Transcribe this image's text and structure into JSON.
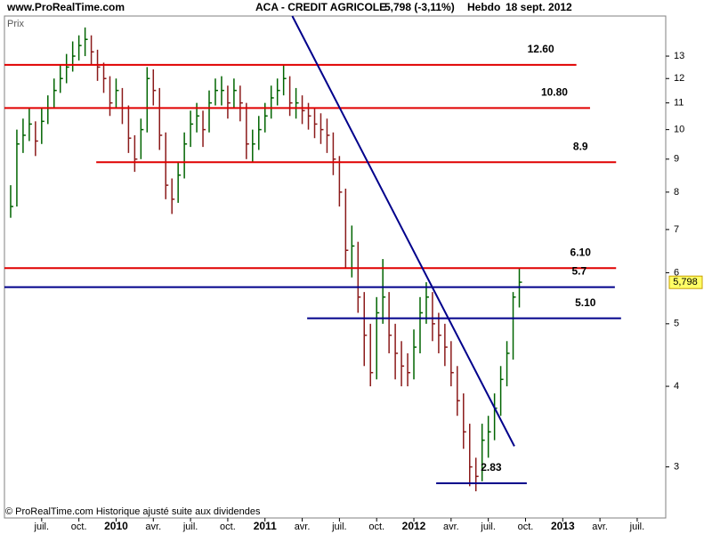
{
  "chart_data": {
    "type": "ohlc",
    "source": "www.ProRealTime.com",
    "title": "ACA - CREDIT AGRICOLE",
    "quote": "5,798 (-3,11%)",
    "period": "Hebdo",
    "date": "18 sept. 2012",
    "ylabel": "Prix",
    "footer": "© ProRealTime.com Historique ajusté suite aux dividendes",
    "log_scale": true,
    "xlim": [
      -3,
      50.3
    ],
    "ylim": [
      2.5,
      15
    ],
    "yticks": [
      3,
      4,
      5,
      6,
      7,
      8,
      9,
      10,
      11,
      12,
      13
    ],
    "xticks": [
      {
        "value": 0,
        "label": "juil."
      },
      {
        "value": 3,
        "label": "oct."
      },
      {
        "value": 6,
        "label": "2010"
      },
      {
        "value": 9,
        "label": "avr."
      },
      {
        "value": 12,
        "label": "juil."
      },
      {
        "value": 15,
        "label": "oct."
      },
      {
        "value": 18,
        "label": "2011"
      },
      {
        "value": 21,
        "label": "avr."
      },
      {
        "value": 24,
        "label": "juil."
      },
      {
        "value": 27,
        "label": "oct."
      },
      {
        "value": 30,
        "label": "2012"
      },
      {
        "value": 33,
        "label": "avr."
      },
      {
        "value": 36,
        "label": "juil."
      },
      {
        "value": 39,
        "label": "oct."
      },
      {
        "value": 42,
        "label": "2013"
      },
      {
        "value": 45,
        "label": "avr."
      },
      {
        "value": 48,
        "label": "juil."
      }
    ],
    "colors": {
      "up": "#006400",
      "down": "#8b1a1a"
    },
    "x": [
      -2.5,
      -2,
      -1.5,
      -1,
      -0.5,
      0,
      0.5,
      1,
      1.5,
      2,
      2.5,
      3,
      3.5,
      4,
      4.5,
      5,
      5.5,
      6,
      6.5,
      7,
      7.5,
      8,
      8.5,
      9,
      9.5,
      10,
      10.5,
      11,
      11.5,
      12,
      12.5,
      13,
      13.5,
      14,
      14.5,
      15,
      15.5,
      16,
      16.5,
      17,
      17.5,
      18,
      18.5,
      19,
      19.5,
      20,
      20.5,
      21,
      21.5,
      22,
      22.5,
      23,
      23.5,
      24,
      24.5,
      25,
      25.5,
      26,
      26.5,
      27,
      27.5,
      28,
      28.5,
      29,
      29.5,
      30,
      30.5,
      31,
      31.5,
      32,
      32.5,
      33,
      33.5,
      34,
      34.5,
      35,
      35.5,
      36,
      36.5,
      37,
      37.5,
      38,
      38.5
    ],
    "high": [
      8.2,
      10.0,
      10.4,
      10.8,
      10.3,
      10.8,
      11.3,
      12.0,
      12.6,
      13.1,
      13.7,
      14.0,
      14.4,
      14.0,
      13.3,
      12.7,
      12.1,
      12.0,
      11.6,
      10.9,
      9.8,
      10.4,
      12.5,
      12.4,
      11.6,
      9.9,
      8.4,
      8.9,
      9.9,
      10.7,
      11.0,
      10.7,
      11.5,
      12.0,
      12.1,
      11.7,
      12.0,
      11.7,
      11.0,
      10.0,
      10.5,
      11.0,
      11.7,
      12.0,
      12.6,
      12.1,
      11.6,
      11.3,
      11.0,
      10.8,
      10.6,
      10.4,
      9.9,
      9.1,
      8.1,
      7.1,
      6.7,
      5.6,
      5.0,
      5.5,
      6.3,
      5.6,
      5.0,
      4.7,
      4.5,
      4.9,
      5.5,
      5.8,
      5.6,
      5.2,
      5.0,
      4.7,
      4.3,
      3.9,
      3.5,
      3.1,
      3.5,
      3.6,
      3.9,
      4.3,
      4.7,
      5.6,
      6.1
    ],
    "low": [
      7.3,
      7.6,
      9.2,
      9.6,
      9.1,
      9.5,
      10.2,
      10.8,
      11.4,
      11.8,
      12.3,
      12.8,
      13.0,
      12.6,
      11.9,
      11.4,
      10.5,
      10.8,
      10.2,
      9.2,
      8.6,
      9.0,
      9.9,
      10.9,
      9.3,
      7.8,
      7.4,
      7.7,
      8.4,
      9.4,
      9.9,
      9.4,
      9.9,
      10.9,
      10.9,
      10.4,
      10.8,
      10.3,
      9.0,
      8.9,
      9.3,
      9.9,
      10.4,
      10.9,
      11.3,
      10.5,
      10.4,
      10.2,
      10.0,
      9.7,
      9.5,
      9.2,
      8.5,
      7.6,
      6.1,
      5.9,
      5.2,
      4.3,
      4.0,
      4.1,
      5.0,
      4.5,
      4.1,
      4.0,
      4.0,
      4.1,
      4.5,
      5.0,
      4.7,
      4.5,
      4.3,
      4.0,
      3.6,
      3.2,
      2.8,
      2.75,
      2.85,
      3.1,
      3.3,
      3.6,
      4.0,
      4.4,
      5.3
    ],
    "close": [
      7.6,
      9.5,
      9.8,
      10.2,
      9.6,
      10.3,
      10.8,
      11.5,
      12.0,
      12.5,
      13.0,
      13.5,
      13.8,
      13.2,
      12.5,
      12.0,
      11.0,
      11.5,
      10.8,
      9.7,
      9.0,
      10.0,
      12.0,
      11.5,
      9.8,
      8.2,
      7.8,
      8.5,
      9.5,
      10.2,
      10.5,
      10.0,
      11.0,
      11.5,
      11.5,
      11.0,
      11.5,
      11.0,
      9.5,
      9.5,
      10.0,
      10.5,
      11.2,
      11.5,
      12.0,
      11.0,
      11.0,
      10.7,
      10.5,
      10.2,
      10.0,
      9.8,
      9.0,
      8.0,
      6.5,
      6.6,
      5.5,
      4.8,
      4.2,
      5.2,
      5.5,
      4.8,
      4.5,
      4.3,
      4.2,
      4.6,
      5.2,
      5.5,
      5.0,
      4.8,
      4.6,
      4.2,
      3.8,
      3.4,
      3.0,
      2.9,
      3.3,
      3.4,
      3.7,
      4.1,
      4.5,
      5.5,
      5.8
    ],
    "last_price": {
      "value": 5.798,
      "label": "5,798"
    },
    "levels": [
      {
        "value": 12.6,
        "label": "12.60",
        "color": "#e00000",
        "x": [
          -3,
          43.1
        ]
      },
      {
        "value": 10.8,
        "label": "10.80",
        "color": "#e00000",
        "x": [
          -3,
          44.2
        ]
      },
      {
        "value": 8.9,
        "label": "8.9",
        "color": "#e00000",
        "x": [
          4.4,
          46.3
        ]
      },
      {
        "value": 6.1,
        "label": "6.10",
        "color": "#e00000",
        "x": [
          -3,
          46.3
        ]
      },
      {
        "value": 5.7,
        "label": "5.7",
        "color": "#00008b",
        "x": [
          -3,
          46.2
        ]
      },
      {
        "value": 5.1,
        "label": "5.10",
        "color": "#00008b",
        "x": [
          21.4,
          46.7
        ]
      },
      {
        "value": 2.83,
        "label": "2.83",
        "color": "#00008b",
        "x": [
          31.8,
          39.1
        ]
      }
    ],
    "trendline": {
      "x": [
        20.2,
        38.1
      ],
      "y": [
        15,
        3.23
      ],
      "color": "#00008b"
    }
  }
}
